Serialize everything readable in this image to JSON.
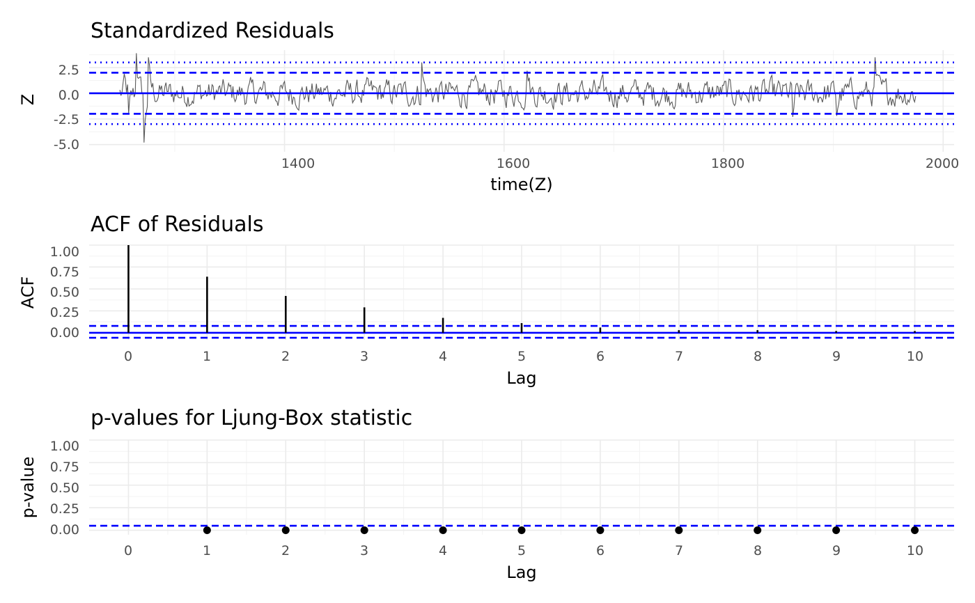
{
  "chart_data": [
    {
      "type": "line",
      "title": "Standardized Residuals",
      "xlabel": "time(Z)",
      "ylabel": "Z",
      "xlim": [
        1222,
        2010
      ],
      "ylim": [
        -5.7,
        4.2
      ],
      "xticks": [
        1400,
        1600,
        1800,
        2000
      ],
      "xtick_labels": [
        "1400",
        "1600",
        "1800",
        "2000"
      ],
      "yticks": [
        2.5,
        0.0,
        -2.5,
        -5.0
      ],
      "ytick_labels": [
        "2.5",
        "0.0",
        "-2.5",
        "-5.0"
      ],
      "grid": true,
      "reference_lines": [
        {
          "y": 0,
          "style": "solid",
          "color": "#0000ff"
        },
        {
          "y": 2,
          "style": "dashed",
          "color": "#0000ff"
        },
        {
          "y": -2,
          "style": "dashed",
          "color": "#0000ff"
        },
        {
          "y": 3,
          "style": "dotted",
          "color": "#0000ff"
        },
        {
          "y": -3,
          "style": "dotted",
          "color": "#0000ff"
        }
      ],
      "series": [
        {
          "color": "#595959",
          "x_start": 1250,
          "x_end": 1975,
          "approximate": true,
          "peaks": [
            {
              "x": 1254,
              "y": 1.9
            },
            {
              "x": 1258,
              "y": -2.0
            },
            {
              "x": 1265,
              "y": 3.9
            },
            {
              "x": 1272,
              "y": -4.8
            },
            {
              "x": 1276,
              "y": 3.5
            },
            {
              "x": 1525,
              "y": 3.0
            },
            {
              "x": 1621,
              "y": 2.2
            },
            {
              "x": 1863,
              "y": -2.3
            },
            {
              "x": 1903,
              "y": -2.2
            },
            {
              "x": 1938,
              "y": 3.5
            }
          ]
        }
      ]
    },
    {
      "type": "bar",
      "title": "ACF of Residuals",
      "xlabel": "Lag",
      "ylabel": "ACF",
      "categories": [
        "0",
        "1",
        "2",
        "3",
        "4",
        "5",
        "6",
        "7",
        "8",
        "9",
        "10"
      ],
      "x": [
        0,
        1,
        2,
        3,
        4,
        5,
        6,
        7,
        8,
        9,
        10
      ],
      "values": [
        1.0,
        0.64,
        0.42,
        0.29,
        0.17,
        0.11,
        0.06,
        0.03,
        0.03,
        0.02,
        0.02
      ],
      "xlim": [
        -0.5,
        10.5
      ],
      "ylim": [
        -0.08,
        1.0
      ],
      "yticks": [
        1.0,
        0.75,
        0.5,
        0.25,
        0.0
      ],
      "ytick_labels": [
        "1.00",
        "0.75",
        "0.50",
        "0.25",
        "0.00"
      ],
      "grid": true,
      "reference_lines": [
        {
          "y": 0,
          "style": "solid",
          "color": "#0000ff"
        },
        {
          "y": 0.078,
          "style": "dashed",
          "color": "#0000ff"
        },
        {
          "y": -0.057,
          "style": "dashed",
          "color": "#0000ff"
        }
      ]
    },
    {
      "type": "scatter",
      "title": "p-values for Ljung-Box statistic",
      "xlabel": "Lag",
      "ylabel": "p-value",
      "categories": [
        "0",
        "1",
        "2",
        "3",
        "4",
        "5",
        "6",
        "7",
        "8",
        "9",
        "10"
      ],
      "x": [
        1,
        2,
        3,
        4,
        5,
        6,
        7,
        8,
        9,
        10
      ],
      "y": [
        0,
        0,
        0,
        0,
        0,
        0,
        0,
        0,
        0,
        0
      ],
      "xlim": [
        -0.5,
        10.5
      ],
      "ylim": [
        -0.05,
        1.0
      ],
      "yticks": [
        1.0,
        0.75,
        0.5,
        0.25,
        0.0
      ],
      "ytick_labels": [
        "1.00",
        "0.75",
        "0.50",
        "0.25",
        "0.00"
      ],
      "grid": true,
      "reference_lines": [
        {
          "y": 0.05,
          "style": "dashed",
          "color": "#0000ff"
        }
      ]
    }
  ]
}
